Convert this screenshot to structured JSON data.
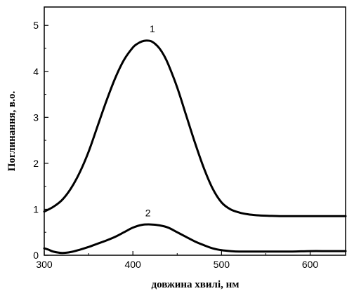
{
  "chart_data": {
    "type": "line",
    "title": "",
    "xlabel": "довжина хвилі, нм",
    "ylabel": "Поглинання, в.о.",
    "xlim": [
      300,
      640
    ],
    "ylim": [
      0,
      5.4
    ],
    "x_ticks": [
      300,
      400,
      500,
      600
    ],
    "x_tick_labels": [
      "300",
      "400",
      "500",
      "600"
    ],
    "y_ticks": [
      0,
      1,
      2,
      3,
      4,
      5
    ],
    "y_tick_labels": [
      "0",
      "1",
      "2",
      "3",
      "4",
      "5"
    ],
    "grid": false,
    "legend": "none",
    "series": [
      {
        "name": "1",
        "color": "#000000",
        "x": [
          300,
          310,
          320,
          330,
          340,
          350,
          360,
          370,
          380,
          390,
          400,
          405,
          410,
          415,
          420,
          425,
          430,
          435,
          440,
          450,
          460,
          470,
          480,
          490,
          500,
          510,
          520,
          530,
          540,
          550,
          560,
          570,
          580,
          590,
          600,
          610,
          620,
          630,
          640
        ],
        "values": [
          0.95,
          1.05,
          1.2,
          1.45,
          1.8,
          2.25,
          2.8,
          3.35,
          3.85,
          4.25,
          4.52,
          4.6,
          4.65,
          4.67,
          4.66,
          4.6,
          4.5,
          4.35,
          4.15,
          3.65,
          3.05,
          2.45,
          1.9,
          1.45,
          1.15,
          1.0,
          0.93,
          0.89,
          0.87,
          0.86,
          0.855,
          0.85,
          0.85,
          0.85,
          0.85,
          0.85,
          0.85,
          0.85,
          0.85
        ]
      },
      {
        "name": "2",
        "color": "#000000",
        "x": [
          300,
          305,
          310,
          320,
          330,
          340,
          350,
          360,
          370,
          380,
          390,
          400,
          410,
          420,
          430,
          440,
          450,
          460,
          470,
          480,
          490,
          500,
          510,
          520,
          540,
          560,
          580,
          600,
          620,
          640
        ],
        "values": [
          0.15,
          0.12,
          0.08,
          0.05,
          0.07,
          0.12,
          0.18,
          0.25,
          0.32,
          0.4,
          0.5,
          0.6,
          0.66,
          0.67,
          0.65,
          0.6,
          0.5,
          0.4,
          0.3,
          0.22,
          0.15,
          0.11,
          0.09,
          0.08,
          0.08,
          0.08,
          0.08,
          0.09,
          0.09,
          0.09
        ]
      }
    ],
    "annotations": [
      {
        "text": "1",
        "x": 422,
        "y": 4.85
      },
      {
        "text": "2",
        "x": 417,
        "y": 0.85
      }
    ]
  }
}
